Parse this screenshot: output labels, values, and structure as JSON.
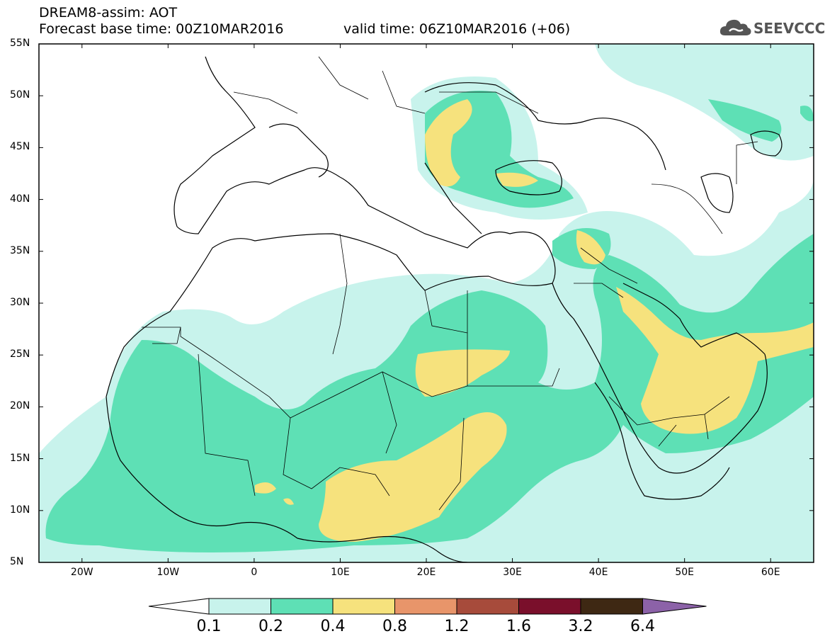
{
  "header": {
    "line1": "DREAM8-assim: AOT",
    "line2": "Forecast base time: 00Z10MAR2016",
    "valid": "valid time: 06Z10MAR2016 (+06)",
    "logo_text": "SEEVCCC",
    "logo_icon": "cloud-icon"
  },
  "map": {
    "lon_range": [
      -25,
      65
    ],
    "lat_range": [
      5,
      55
    ],
    "lat_labels": [
      "55N",
      "50N",
      "45N",
      "40N",
      "35N",
      "30N",
      "25N",
      "20N",
      "15N",
      "10N",
      "5N"
    ],
    "lon_labels": [
      "20W",
      "10W",
      "0",
      "10E",
      "20E",
      "30E",
      "40E",
      "50E",
      "60E"
    ]
  },
  "colorbar": {
    "labels": [
      "0.1",
      "0.2",
      "0.4",
      "0.8",
      "1.2",
      "1.6",
      "3.2",
      "6.4"
    ],
    "colors": [
      "#c8f3ec",
      "#5ee0b5",
      "#f6e27d",
      "#e8956a",
      "#a74b3b",
      "#7a0f2b",
      "#3e2813",
      "#8c62a8"
    ],
    "low_color": "#ffffff"
  }
}
